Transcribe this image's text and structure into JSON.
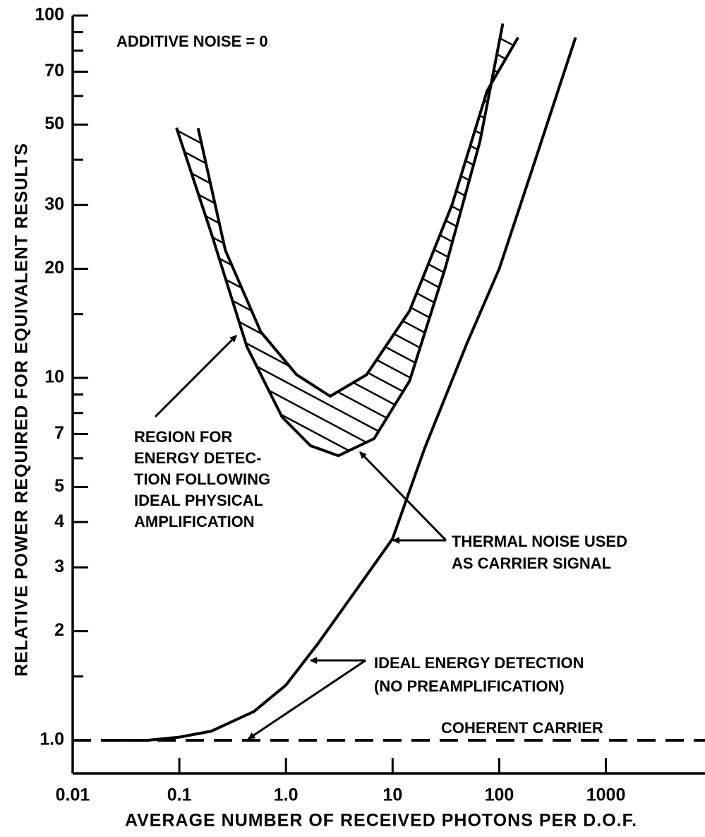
{
  "chart_data": {
    "type": "line",
    "title_annotation": "ADDITIVE NOISE = 0",
    "x_label": "AVERAGE NUMBER OF RECEIVED PHOTONS PER D.O.F.",
    "y_label": "RELATIVE POWER REQUIRED FOR EQUIVALENT RESULTS",
    "xlog": true,
    "ylog": true,
    "xlim": [
      0.01,
      8500
    ],
    "ylim": [
      0.81,
      100
    ],
    "xticks": [
      0.01,
      0.1,
      {
        "value": 1,
        "label": "1.0"
      },
      10,
      100,
      1000
    ],
    "yticks": [
      {
        "value": 1,
        "label": "1.0"
      },
      2,
      3,
      4,
      5,
      7,
      10,
      20,
      30,
      50,
      70,
      100
    ],
    "yticks_minor": [
      1.5,
      6,
      8,
      9,
      15,
      40,
      60,
      80,
      90
    ],
    "series": [
      {
        "color": "#000000",
        "dashed": true,
        "x": [
          0.01,
          8500
        ],
        "values": [
          1,
          1
        ]
      },
      {
        "color": "#000000",
        "dashed": false,
        "x": [
          0.02,
          0.05,
          0.1,
          0.2,
          0.5,
          1,
          2,
          5,
          10,
          20,
          50,
          100,
          200,
          520
        ],
        "values": [
          1.0,
          1.0,
          1.02,
          1.06,
          1.2,
          1.42,
          1.85,
          2.7,
          3.6,
          6.4,
          12.5,
          20,
          37,
          87
        ]
      },
      {
        "color": "#000000",
        "dashed": false,
        "region": "upper",
        "x": [
          0.15,
          0.27,
          0.58,
          1.26,
          2.6,
          5.7,
          14.4,
          36,
          77,
          150
        ],
        "values": [
          48.9,
          22.5,
          13.4,
          10.2,
          8.9,
          10.2,
          15.3,
          30,
          62,
          87
        ]
      },
      {
        "color": "#000000",
        "dashed": false,
        "region": "lower",
        "x": [
          0.094,
          0.2,
          0.43,
          0.92,
          1.7,
          3.1,
          6.7,
          14.4,
          31,
          66,
          108
        ],
        "values": [
          49,
          25,
          12.2,
          7.8,
          6.5,
          6.1,
          6.8,
          9.8,
          20,
          45,
          95
        ]
      }
    ],
    "annotations": [
      {
        "lines": [
          "REGION FOR",
          "ENERGY DETEC-",
          "TION FOLLOWING",
          "IDEAL PHYSICAL",
          "AMPLIFICATION"
        ]
      },
      {
        "lines": [
          "THERMAL NOISE USED",
          "AS CARRIER SIGNAL"
        ]
      },
      {
        "lines": [
          "IDEAL ENERGY DETECTION",
          "(NO PREAMPLIFICATION)"
        ]
      },
      {
        "lines": [
          "COHERENT CARRIER"
        ]
      }
    ]
  }
}
